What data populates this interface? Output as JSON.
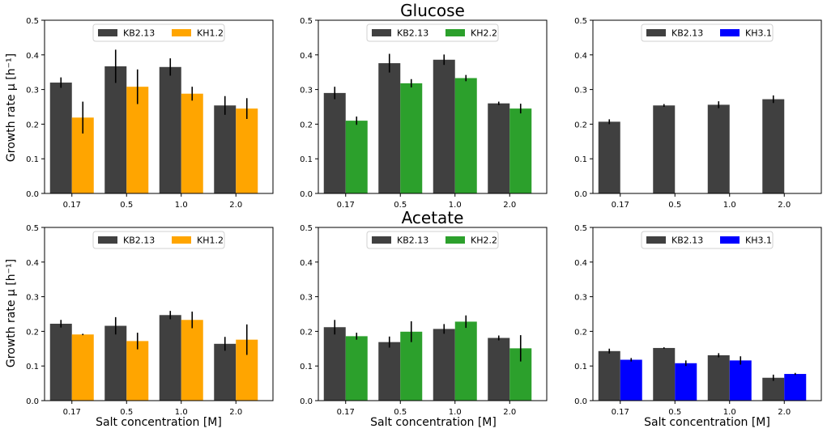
{
  "row_titles": [
    "Glucose",
    "Acetate"
  ],
  "y_axis_label": "Growth rate μ [h⁻¹]",
  "x_axis_label": "Salt concentration [M]",
  "chart_data": [
    {
      "type": "bar",
      "row": "Glucose",
      "col": 0,
      "categories": [
        "0.17",
        "0.5",
        "1.0",
        "2.0"
      ],
      "ylim": [
        0,
        0.5
      ],
      "yticks": [
        "0.0",
        "0.1",
        "0.2",
        "0.3",
        "0.4",
        "0.5"
      ],
      "legend_position": "top-center",
      "series": [
        {
          "name": "KB2.13",
          "color": "#404040",
          "values": [
            0.32,
            0.367,
            0.365,
            0.254
          ],
          "errors": [
            0.015,
            0.048,
            0.025,
            0.027
          ]
        },
        {
          "name": "KH1.2",
          "color": "#ffa500",
          "values": [
            0.219,
            0.308,
            0.288,
            0.245
          ],
          "errors": [
            0.046,
            0.05,
            0.02,
            0.03
          ]
        }
      ]
    },
    {
      "type": "bar",
      "row": "Glucose",
      "col": 1,
      "categories": [
        "0.17",
        "0.5",
        "1.0",
        "2.0"
      ],
      "ylim": [
        0,
        0.5
      ],
      "yticks": [
        "0.0",
        "0.1",
        "0.2",
        "0.3",
        "0.4",
        "0.5"
      ],
      "legend_position": "top-center",
      "series": [
        {
          "name": "KB2.13",
          "color": "#404040",
          "values": [
            0.29,
            0.376,
            0.386,
            0.26
          ],
          "errors": [
            0.018,
            0.027,
            0.015,
            0.005
          ]
        },
        {
          "name": "KH2.2",
          "color": "#2ca02c",
          "values": [
            0.21,
            0.318,
            0.333,
            0.245
          ],
          "errors": [
            0.012,
            0.012,
            0.009,
            0.014
          ]
        }
      ]
    },
    {
      "type": "bar",
      "row": "Glucose",
      "col": 2,
      "categories": [
        "0.17",
        "0.5",
        "1.0",
        "2.0"
      ],
      "ylim": [
        0,
        0.5
      ],
      "yticks": [
        "0.0",
        "0.1",
        "0.2",
        "0.3",
        "0.4",
        "0.5"
      ],
      "legend_position": "top-center",
      "series": [
        {
          "name": "KB2.13",
          "color": "#404040",
          "values": [
            0.207,
            0.254,
            0.256,
            0.272
          ],
          "errors": [
            0.007,
            0.004,
            0.01,
            0.011
          ]
        },
        {
          "name": "KH3.1",
          "color": "#0000ff",
          "values": [
            0,
            0,
            0,
            0
          ],
          "errors": [
            0,
            0,
            0,
            0
          ]
        }
      ]
    },
    {
      "type": "bar",
      "row": "Acetate",
      "col": 0,
      "categories": [
        "0.17",
        "0.5",
        "1.0",
        "2.0"
      ],
      "ylim": [
        0,
        0.5
      ],
      "yticks": [
        "0.0",
        "0.1",
        "0.2",
        "0.3",
        "0.4",
        "0.5"
      ],
      "legend_position": "top-center",
      "series": [
        {
          "name": "KB2.13",
          "color": "#404040",
          "values": [
            0.222,
            0.216,
            0.247,
            0.164
          ],
          "errors": [
            0.011,
            0.025,
            0.012,
            0.02
          ]
        },
        {
          "name": "KH1.2",
          "color": "#ffa500",
          "values": [
            0.191,
            0.172,
            0.233,
            0.176
          ],
          "errors": [
            0.002,
            0.024,
            0.024,
            0.044
          ]
        }
      ]
    },
    {
      "type": "bar",
      "row": "Acetate",
      "col": 1,
      "categories": [
        "0.17",
        "0.5",
        "1.0",
        "2.0"
      ],
      "ylim": [
        0,
        0.5
      ],
      "yticks": [
        "0.0",
        "0.1",
        "0.2",
        "0.3",
        "0.4",
        "0.5"
      ],
      "legend_position": "top-center",
      "series": [
        {
          "name": "KB2.13",
          "color": "#404040",
          "values": [
            0.212,
            0.169,
            0.207,
            0.181
          ],
          "errors": [
            0.021,
            0.016,
            0.014,
            0.007
          ]
        },
        {
          "name": "KH2.2",
          "color": "#2ca02c",
          "values": [
            0.186,
            0.199,
            0.228,
            0.151
          ],
          "errors": [
            0.01,
            0.03,
            0.018,
            0.038
          ]
        }
      ]
    },
    {
      "type": "bar",
      "row": "Acetate",
      "col": 2,
      "categories": [
        "0.17",
        "0.5",
        "1.0",
        "2.0"
      ],
      "ylim": [
        0,
        0.5
      ],
      "yticks": [
        "0.0",
        "0.1",
        "0.2",
        "0.3",
        "0.4",
        "0.5"
      ],
      "legend_position": "top-center",
      "series": [
        {
          "name": "KB2.13",
          "color": "#404040",
          "values": [
            0.143,
            0.152,
            0.131,
            0.066
          ],
          "errors": [
            0.007,
            0.002,
            0.006,
            0.009
          ]
        },
        {
          "name": "KH3.1",
          "color": "#0000ff",
          "values": [
            0.118,
            0.108,
            0.116,
            0.077
          ],
          "errors": [
            0.005,
            0.008,
            0.012,
            0.003
          ]
        }
      ]
    }
  ]
}
